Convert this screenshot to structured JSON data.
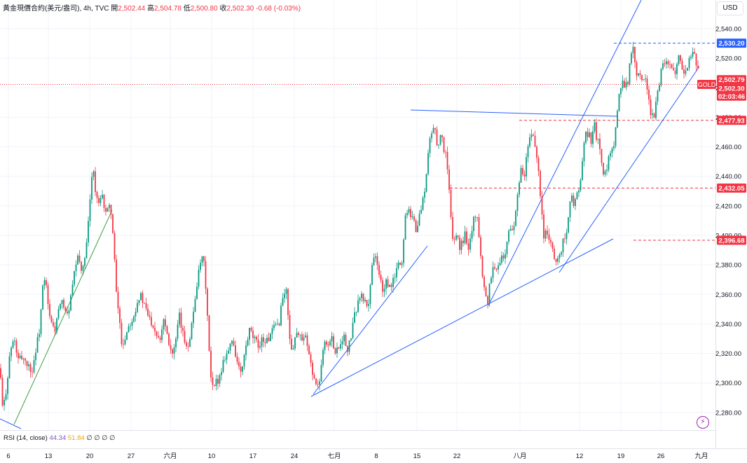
{
  "header": {
    "title": "黃金現價合約(美元/盎司), 4h, TVC",
    "open_label": "開",
    "open": "2,502.44",
    "high_label": "高",
    "high": "2,504.78",
    "low_label": "低",
    "low": "2,500.80",
    "close_label": "收",
    "close": "2,502.30",
    "change": "-0.68 (-0.03%)"
  },
  "currency": "USD",
  "rsi_legend": {
    "label": "RSI (14, close)",
    "v1": "44.34",
    "v2": "51.84",
    "zeros": "∅ ∅ ∅ ∅"
  },
  "chart_data": {
    "type": "candlestick",
    "timeframe": "4h",
    "y_ticks": [
      "2,540.00",
      "2,520.00",
      "2,500.00",
      "2,480.00",
      "2,460.00",
      "2,440.00",
      "2,420.00",
      "2,400.00",
      "2,380.00",
      "2,360.00",
      "2,340.00",
      "2,320.00",
      "2,300.00",
      "2,280.00"
    ],
    "x_ticks": [
      "6",
      "13",
      "20",
      "27",
      "六月",
      "10",
      "17",
      "24",
      "七月",
      "8",
      "15",
      "22",
      "八月",
      "12",
      "19",
      "26",
      "九月"
    ],
    "price_labels": [
      {
        "text": "2,530.20",
        "price": 2530.2,
        "color": "#2962ff"
      },
      {
        "text": "2,502.79",
        "price": 2505.5,
        "color": "#f23645"
      },
      {
        "text": "2,502.30",
        "price": 2499.6,
        "color": "#f23645"
      },
      {
        "text": "02:03:46",
        "price": 2494.3,
        "color": "#f23645"
      },
      {
        "text": "2,477.93",
        "price": 2477.93,
        "color": "#f23645"
      },
      {
        "text": "2,432.05",
        "price": 2432.05,
        "color": "#f23645"
      },
      {
        "text": "2,396.68",
        "price": 2396.68,
        "color": "#f23645"
      }
    ],
    "symbol_tag": "GOLD",
    "last_price": 2502.3,
    "horizontal_levels": [
      2530.2,
      2477.93,
      2432.05,
      2396.68,
      2502.3
    ],
    "price_path": [
      [
        0,
        2310
      ],
      [
        4,
        2280
      ],
      [
        10,
        2300
      ],
      [
        14,
        2320
      ],
      [
        20,
        2330
      ],
      [
        26,
        2315
      ],
      [
        32,
        2318
      ],
      [
        40,
        2312
      ],
      [
        46,
        2308
      ],
      [
        50,
        2320
      ],
      [
        56,
        2335
      ],
      [
        62,
        2370
      ],
      [
        66,
        2365
      ],
      [
        70,
        2345
      ],
      [
        74,
        2340
      ],
      [
        78,
        2335
      ],
      [
        84,
        2350
      ],
      [
        90,
        2355
      ],
      [
        96,
        2345
      ],
      [
        102,
        2360
      ],
      [
        108,
        2380
      ],
      [
        112,
        2385
      ],
      [
        118,
        2375
      ],
      [
        124,
        2395
      ],
      [
        128,
        2420
      ],
      [
        132,
        2450
      ],
      [
        136,
        2430
      ],
      [
        140,
        2420
      ],
      [
        146,
        2425
      ],
      [
        152,
        2415
      ],
      [
        158,
        2420
      ],
      [
        162,
        2395
      ],
      [
        166,
        2360
      ],
      [
        170,
        2345
      ],
      [
        174,
        2325
      ],
      [
        178,
        2330
      ],
      [
        184,
        2340
      ],
      [
        190,
        2345
      ],
      [
        196,
        2355
      ],
      [
        200,
        2360
      ],
      [
        206,
        2352
      ],
      [
        212,
        2345
      ],
      [
        218,
        2340
      ],
      [
        222,
        2335
      ],
      [
        228,
        2330
      ],
      [
        234,
        2345
      ],
      [
        240,
        2330
      ],
      [
        246,
        2320
      ],
      [
        250,
        2325
      ],
      [
        256,
        2345
      ],
      [
        262,
        2330
      ],
      [
        268,
        2325
      ],
      [
        274,
        2340
      ],
      [
        280,
        2365
      ],
      [
        284,
        2375
      ],
      [
        288,
        2385
      ],
      [
        292,
        2378
      ],
      [
        296,
        2345
      ],
      [
        300,
        2305
      ],
      [
        304,
        2295
      ],
      [
        308,
        2300
      ],
      [
        314,
        2305
      ],
      [
        320,
        2318
      ],
      [
        326,
        2322
      ],
      [
        332,
        2330
      ],
      [
        338,
        2315
      ],
      [
        344,
        2305
      ],
      [
        350,
        2322
      ],
      [
        356,
        2335
      ],
      [
        362,
        2330
      ],
      [
        368,
        2325
      ],
      [
        374,
        2330
      ],
      [
        380,
        2328
      ],
      [
        386,
        2332
      ],
      [
        392,
        2338
      ],
      [
        398,
        2340
      ],
      [
        402,
        2355
      ],
      [
        408,
        2365
      ],
      [
        412,
        2340
      ],
      [
        416,
        2320
      ],
      [
        420,
        2330
      ],
      [
        426,
        2335
      ],
      [
        430,
        2328
      ],
      [
        436,
        2330
      ],
      [
        440,
        2320
      ],
      [
        444,
        2312
      ],
      [
        450,
        2300
      ],
      [
        454,
        2296
      ],
      [
        458,
        2310
      ],
      [
        462,
        2330
      ],
      [
        468,
        2325
      ],
      [
        474,
        2330
      ],
      [
        478,
        2322
      ],
      [
        484,
        2325
      ],
      [
        490,
        2333
      ],
      [
        496,
        2320
      ],
      [
        502,
        2335
      ],
      [
        508,
        2350
      ],
      [
        514,
        2360
      ],
      [
        520,
        2355
      ],
      [
        526,
        2352
      ],
      [
        530,
        2378
      ],
      [
        534,
        2388
      ],
      [
        538,
        2380
      ],
      [
        542,
        2372
      ],
      [
        546,
        2362
      ],
      [
        550,
        2368
      ],
      [
        556,
        2364
      ],
      [
        562,
        2370
      ],
      [
        568,
        2380
      ],
      [
        574,
        2382
      ],
      [
        578,
        2412
      ],
      [
        582,
        2420
      ],
      [
        586,
        2415
      ],
      [
        590,
        2412
      ],
      [
        594,
        2402
      ],
      [
        598,
        2412
      ],
      [
        604,
        2425
      ],
      [
        608,
        2438
      ],
      [
        612,
        2460
      ],
      [
        616,
        2470
      ],
      [
        620,
        2475
      ],
      [
        624,
        2460
      ],
      [
        628,
        2468
      ],
      [
        632,
        2462
      ],
      [
        636,
        2455
      ],
      [
        640,
        2440
      ],
      [
        644,
        2405
      ],
      [
        648,
        2395
      ],
      [
        652,
        2400
      ],
      [
        656,
        2392
      ],
      [
        660,
        2395
      ],
      [
        664,
        2402
      ],
      [
        668,
        2392
      ],
      [
        672,
        2402
      ],
      [
        676,
        2410
      ],
      [
        680,
        2418
      ],
      [
        684,
        2395
      ],
      [
        688,
        2375
      ],
      [
        692,
        2362
      ],
      [
        696,
        2355
      ],
      [
        700,
        2372
      ],
      [
        704,
        2380
      ],
      [
        708,
        2374
      ],
      [
        712,
        2382
      ],
      [
        716,
        2388
      ],
      [
        720,
        2380
      ],
      [
        724,
        2398
      ],
      [
        728,
        2405
      ],
      [
        732,
        2402
      ],
      [
        736,
        2418
      ],
      [
        740,
        2430
      ],
      [
        744,
        2445
      ],
      [
        748,
        2438
      ],
      [
        752,
        2455
      ],
      [
        756,
        2465
      ],
      [
        760,
        2470
      ],
      [
        764,
        2460
      ],
      [
        768,
        2450
      ],
      [
        772,
        2420
      ],
      [
        776,
        2400
      ],
      [
        780,
        2405
      ],
      [
        784,
        2395
      ],
      [
        788,
        2390
      ],
      [
        792,
        2385
      ],
      [
        796,
        2382
      ],
      [
        800,
        2388
      ],
      [
        804,
        2398
      ],
      [
        808,
        2402
      ],
      [
        812,
        2418
      ],
      [
        816,
        2425
      ],
      [
        820,
        2420
      ],
      [
        824,
        2428
      ],
      [
        828,
        2435
      ],
      [
        832,
        2455
      ],
      [
        836,
        2468
      ],
      [
        840,
        2470
      ],
      [
        844,
        2462
      ],
      [
        848,
        2475
      ],
      [
        852,
        2465
      ],
      [
        856,
        2460
      ],
      [
        860,
        2445
      ],
      [
        864,
        2440
      ],
      [
        868,
        2452
      ],
      [
        872,
        2455
      ],
      [
        876,
        2458
      ],
      [
        880,
        2480
      ],
      [
        884,
        2500
      ],
      [
        888,
        2505
      ],
      [
        892,
        2502
      ],
      [
        896,
        2505
      ],
      [
        900,
        2520
      ],
      [
        904,
        2530
      ],
      [
        908,
        2510
      ],
      [
        912,
        2512
      ],
      [
        916,
        2505
      ],
      [
        920,
        2508
      ],
      [
        924,
        2495
      ],
      [
        928,
        2485
      ],
      [
        932,
        2478
      ],
      [
        936,
        2490
      ],
      [
        940,
        2502
      ],
      [
        944,
        2512
      ],
      [
        948,
        2518
      ],
      [
        952,
        2520
      ],
      [
        956,
        2515
      ],
      [
        960,
        2508
      ],
      [
        964,
        2512
      ],
      [
        968,
        2526
      ],
      [
        972,
        2518
      ],
      [
        976,
        2508
      ],
      [
        980,
        2512
      ],
      [
        984,
        2522
      ],
      [
        988,
        2525
      ],
      [
        992,
        2520
      ],
      [
        996,
        2512
      ],
      [
        1000,
        2502
      ]
    ]
  }
}
